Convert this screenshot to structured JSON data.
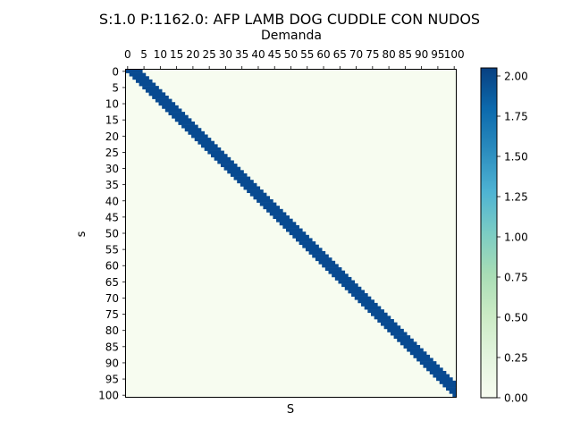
{
  "chart_data": {
    "type": "heatmap",
    "title": "S:1.0 P:1162.0: AFP LAMB DOG CUDDLE CON NUDOS",
    "top_xlabel": "Demanda",
    "xlabel": "S",
    "ylabel": "s",
    "x_tick_labels": [
      "0",
      "5",
      "10",
      "15",
      "20",
      "25",
      "30",
      "35",
      "40",
      "45",
      "50",
      "55",
      "60",
      "65",
      "70",
      "75",
      "80",
      "85",
      "90",
      "95",
      "100"
    ],
    "y_tick_labels": [
      "0",
      "5",
      "10",
      "15",
      "20",
      "25",
      "30",
      "35",
      "40",
      "45",
      "50",
      "55",
      "60",
      "65",
      "70",
      "75",
      "80",
      "85",
      "90",
      "95",
      "100"
    ],
    "grid_step": 5,
    "band_width": 5,
    "matrix_description": "value 2 where 0 <= column - row <= 4 (clipped at last column), else 0",
    "high_value": 2,
    "low_value": 0,
    "colorbar": {
      "colormap": "GnBu",
      "ticks": [
        "0.00",
        "0.25",
        "0.50",
        "0.75",
        "1.00",
        "1.25",
        "1.50",
        "1.75",
        "2.00"
      ],
      "range": [
        0,
        2.05
      ]
    },
    "colors": {
      "high": "#084a91",
      "low": "#f7fcf0"
    }
  }
}
